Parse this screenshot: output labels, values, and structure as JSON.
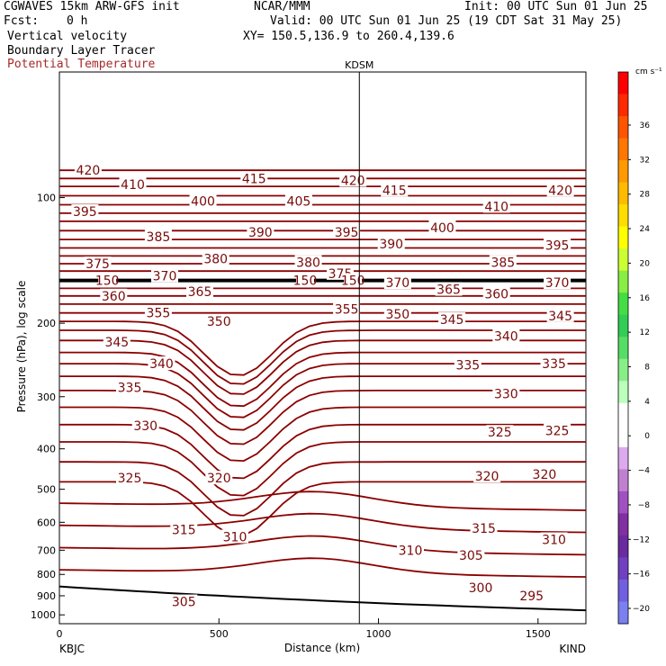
{
  "header": {
    "model": "CGWAVES 15km ARW-GFS init",
    "org": "NCAR/MMM",
    "init": "Init: 00 UTC Sun 01 Jun 25",
    "fcst_label": "Fcst:",
    "fcst_value": "0 h",
    "valid": "Valid: 00 UTC Sun 01 Jun 25 (19 CDT Sat 31 May 25)",
    "field1": "Vertical velocity",
    "xy": "XY= 150.5,136.9 to 260.4,139.6",
    "field2": "Boundary Layer Tracer",
    "field3": "Potential Temperature"
  },
  "colorbar": {
    "units": "cm s⁻¹",
    "ticks": [
      "36",
      "32",
      "28",
      "24",
      "20",
      "16",
      "12",
      "8",
      "4",
      "0",
      "−4",
      "−8",
      "−12",
      "−16",
      "−20"
    ],
    "colors": [
      "#ff0000",
      "#ff2a00",
      "#ff5500",
      "#ff7700",
      "#ff9900",
      "#ffbb00",
      "#ffdd00",
      "#ffff00",
      "#ccff33",
      "#88ee44",
      "#44dd44",
      "#33cc55",
      "#55dd66",
      "#88ee88",
      "#bbffbb",
      "#ffffff",
      "#ffffff",
      "#ddaaee",
      "#c080d0",
      "#a050c0",
      "#8030a0",
      "#6a2aa0",
      "#7040c0",
      "#7060e0",
      "#7a80f0"
    ]
  },
  "chart_data": {
    "type": "contour",
    "title": "KDSM",
    "xlabel": "Distance (km)",
    "ylabel": "Pressure (hPa), log scale",
    "x_ticks": [
      0,
      500,
      1000,
      1500
    ],
    "xlim": [
      0,
      1650
    ],
    "x_endpoints": {
      "left": "KBJC",
      "right": "KIND"
    },
    "y_ticks": [
      100,
      200,
      300,
      400,
      500,
      600,
      700,
      800,
      900,
      1000
    ],
    "ylim": [
      1050,
      50
    ],
    "y_scale": "log",
    "marker_x_km": 940,
    "marker_label": "KDSM",
    "contour_field": "Potential Temperature (K)",
    "contour_interval": 5,
    "contour_labels": [
      {
        "v": 420,
        "x": 90,
        "p": 86
      },
      {
        "v": 410,
        "x": 230,
        "p": 93
      },
      {
        "v": 415,
        "x": 610,
        "p": 90
      },
      {
        "v": 420,
        "x": 920,
        "p": 91
      },
      {
        "v": 415,
        "x": 1050,
        "p": 96
      },
      {
        "v": 420,
        "x": 1570,
        "p": 96
      },
      {
        "v": 395,
        "x": 80,
        "p": 108
      },
      {
        "v": 400,
        "x": 450,
        "p": 102
      },
      {
        "v": 405,
        "x": 750,
        "p": 102
      },
      {
        "v": 410,
        "x": 1370,
        "p": 105
      },
      {
        "v": 385,
        "x": 310,
        "p": 124
      },
      {
        "v": 390,
        "x": 630,
        "p": 121
      },
      {
        "v": 395,
        "x": 900,
        "p": 121
      },
      {
        "v": 400,
        "x": 1200,
        "p": 118
      },
      {
        "v": 390,
        "x": 1040,
        "p": 129
      },
      {
        "v": 395,
        "x": 1560,
        "p": 130
      },
      {
        "v": 375,
        "x": 120,
        "p": 144
      },
      {
        "v": 380,
        "x": 490,
        "p": 140
      },
      {
        "v": 380,
        "x": 780,
        "p": 143
      },
      {
        "v": 375,
        "x": 880,
        "p": 152
      },
      {
        "v": 385,
        "x": 1390,
        "p": 143
      },
      {
        "v": 370,
        "x": 330,
        "p": 154
      },
      {
        "v": 370,
        "x": 1060,
        "p": 160
      },
      {
        "v": 370,
        "x": 1560,
        "p": 160
      },
      {
        "v": 360,
        "x": 170,
        "p": 172
      },
      {
        "v": 365,
        "x": 440,
        "p": 168
      },
      {
        "v": 365,
        "x": 1220,
        "p": 166
      },
      {
        "v": 360,
        "x": 1370,
        "p": 170
      },
      {
        "v": 355,
        "x": 310,
        "p": 189
      },
      {
        "v": 350,
        "x": 500,
        "p": 198
      },
      {
        "v": 355,
        "x": 900,
        "p": 185
      },
      {
        "v": 350,
        "x": 1060,
        "p": 190
      },
      {
        "v": 345,
        "x": 1230,
        "p": 196
      },
      {
        "v": 345,
        "x": 1570,
        "p": 192
      },
      {
        "v": 345,
        "x": 180,
        "p": 222
      },
      {
        "v": 340,
        "x": 320,
        "p": 250
      },
      {
        "v": 340,
        "x": 1400,
        "p": 215
      },
      {
        "v": 335,
        "x": 1280,
        "p": 252
      },
      {
        "v": 335,
        "x": 1550,
        "p": 250
      },
      {
        "v": 335,
        "x": 220,
        "p": 285
      },
      {
        "v": 330,
        "x": 1400,
        "p": 295
      },
      {
        "v": 330,
        "x": 270,
        "p": 352
      },
      {
        "v": 325,
        "x": 1380,
        "p": 365
      },
      {
        "v": 325,
        "x": 1560,
        "p": 362
      },
      {
        "v": 325,
        "x": 220,
        "p": 470
      },
      {
        "v": 320,
        "x": 500,
        "p": 470
      },
      {
        "v": 320,
        "x": 1340,
        "p": 465
      },
      {
        "v": 320,
        "x": 1520,
        "p": 460
      },
      {
        "v": 315,
        "x": 390,
        "p": 625
      },
      {
        "v": 310,
        "x": 550,
        "p": 650
      },
      {
        "v": 315,
        "x": 1330,
        "p": 620
      },
      {
        "v": 310,
        "x": 1550,
        "p": 660
      },
      {
        "v": 310,
        "x": 1100,
        "p": 700
      },
      {
        "v": 305,
        "x": 1290,
        "p": 720
      },
      {
        "v": 305,
        "x": 390,
        "p": 930
      },
      {
        "v": 300,
        "x": 1320,
        "p": 860
      },
      {
        "v": 295,
        "x": 1480,
        "p": 900
      },
      {
        "v": 150,
        "x": 150,
        "p": 158
      },
      {
        "v": 150,
        "x": 770,
        "p": 158
      },
      {
        "v": 150,
        "x": 920,
        "p": 158
      }
    ]
  }
}
